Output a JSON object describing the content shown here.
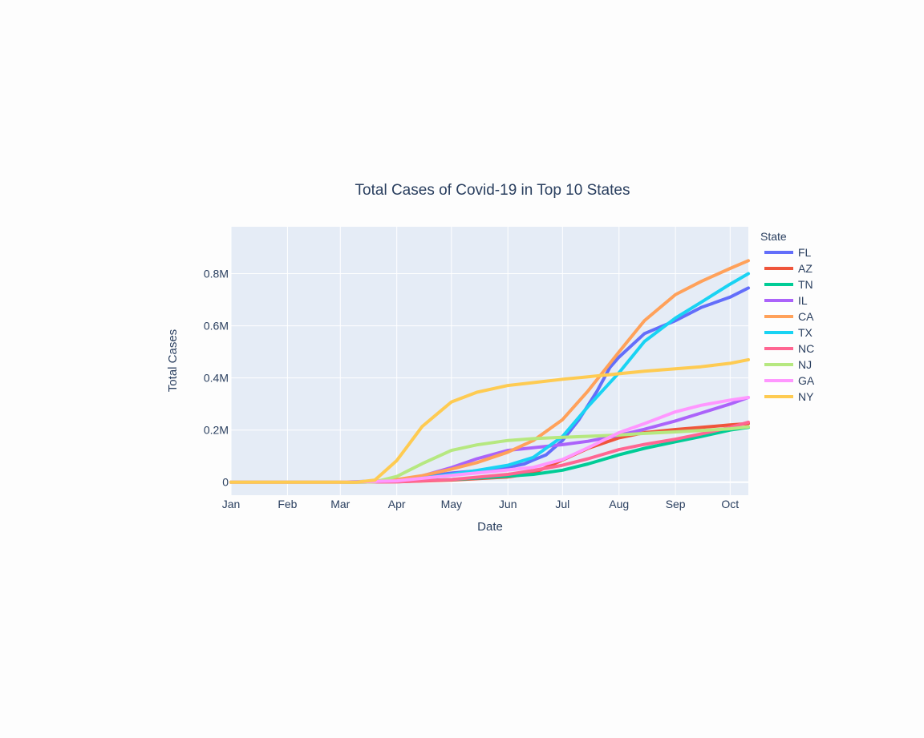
{
  "chart_data": {
    "type": "line",
    "title": "Total Cases of Covid-19 in Top 10 States",
    "xlabel": "Date",
    "ylabel": "Total Cases",
    "x_ticks": [
      "Jan",
      "Feb",
      "Mar",
      "Apr",
      "May",
      "Jun",
      "Jul",
      "Aug",
      "Sep",
      "Oct"
    ],
    "y_ticks": [
      {
        "value": 0,
        "label": "0"
      },
      {
        "value": 200000,
        "label": "0.2M"
      },
      {
        "value": 400000,
        "label": "0.4M"
      },
      {
        "value": 600000,
        "label": "0.6M"
      },
      {
        "value": 800000,
        "label": "0.8M"
      }
    ],
    "x_range": [
      "2020-01-01",
      "2020-10-11"
    ],
    "y_range": [
      -50000,
      980000
    ],
    "grid": true,
    "plot_background": "#e5ecf6",
    "legend_title": "State",
    "legend_position": "right",
    "series": [
      {
        "name": "FL",
        "color": "#636efa",
        "points": [
          [
            "2020-01-01",
            0
          ],
          [
            "2020-02-20",
            0
          ],
          [
            "2020-03-01",
            0
          ],
          [
            "2020-04-01",
            7000
          ],
          [
            "2020-05-01",
            35000
          ],
          [
            "2020-05-20",
            47000
          ],
          [
            "2020-06-01",
            57000
          ],
          [
            "2020-06-10",
            70000
          ],
          [
            "2020-06-15",
            85000
          ],
          [
            "2020-06-22",
            105000
          ],
          [
            "2020-07-01",
            160000
          ],
          [
            "2020-07-10",
            240000
          ],
          [
            "2020-07-20",
            350000
          ],
          [
            "2020-07-27",
            440000
          ],
          [
            "2020-08-01",
            480000
          ],
          [
            "2020-08-15",
            570000
          ],
          [
            "2020-09-01",
            620000
          ],
          [
            "2020-09-15",
            670000
          ],
          [
            "2020-10-01",
            710000
          ],
          [
            "2020-10-11",
            745000
          ]
        ]
      },
      {
        "name": "AZ",
        "color": "#ef553b",
        "points": [
          [
            "2020-01-01",
            0
          ],
          [
            "2020-03-01",
            0
          ],
          [
            "2020-04-01",
            1500
          ],
          [
            "2020-05-01",
            8000
          ],
          [
            "2020-06-01",
            20000
          ],
          [
            "2020-06-15",
            35000
          ],
          [
            "2020-07-01",
            85000
          ],
          [
            "2020-07-15",
            130000
          ],
          [
            "2020-08-01",
            170000
          ],
          [
            "2020-08-15",
            190000
          ],
          [
            "2020-09-01",
            202000
          ],
          [
            "2020-09-15",
            210000
          ],
          [
            "2020-10-01",
            220000
          ],
          [
            "2020-10-11",
            225000
          ]
        ]
      },
      {
        "name": "TN",
        "color": "#00cc96",
        "points": [
          [
            "2020-01-01",
            0
          ],
          [
            "2020-03-01",
            0
          ],
          [
            "2020-04-01",
            2500
          ],
          [
            "2020-05-01",
            10000
          ],
          [
            "2020-06-01",
            23000
          ],
          [
            "2020-06-15",
            30000
          ],
          [
            "2020-07-01",
            46000
          ],
          [
            "2020-07-15",
            70000
          ],
          [
            "2020-08-01",
            105000
          ],
          [
            "2020-08-15",
            130000
          ],
          [
            "2020-09-01",
            155000
          ],
          [
            "2020-09-15",
            175000
          ],
          [
            "2020-10-01",
            200000
          ],
          [
            "2020-10-11",
            210000
          ]
        ]
      },
      {
        "name": "IL",
        "color": "#ab63fa",
        "points": [
          [
            "2020-01-01",
            0
          ],
          [
            "2020-03-01",
            0
          ],
          [
            "2020-03-15",
            1000
          ],
          [
            "2020-04-01",
            7000
          ],
          [
            "2020-04-15",
            24000
          ],
          [
            "2020-05-01",
            56000
          ],
          [
            "2020-05-15",
            90000
          ],
          [
            "2020-06-01",
            122000
          ],
          [
            "2020-06-15",
            132000
          ],
          [
            "2020-07-01",
            144000
          ],
          [
            "2020-07-15",
            157000
          ],
          [
            "2020-08-01",
            180000
          ],
          [
            "2020-08-15",
            203000
          ],
          [
            "2020-09-01",
            235000
          ],
          [
            "2020-09-15",
            265000
          ],
          [
            "2020-10-01",
            300000
          ],
          [
            "2020-10-11",
            325000
          ]
        ]
      },
      {
        "name": "CA",
        "color": "#ffa15a",
        "points": [
          [
            "2020-01-01",
            0
          ],
          [
            "2020-03-01",
            0
          ],
          [
            "2020-03-15",
            400
          ],
          [
            "2020-04-01",
            10000
          ],
          [
            "2020-04-15",
            25000
          ],
          [
            "2020-05-01",
            50000
          ],
          [
            "2020-05-15",
            75000
          ],
          [
            "2020-06-01",
            115000
          ],
          [
            "2020-06-15",
            160000
          ],
          [
            "2020-07-01",
            240000
          ],
          [
            "2020-07-15",
            350000
          ],
          [
            "2020-08-01",
            500000
          ],
          [
            "2020-08-15",
            620000
          ],
          [
            "2020-09-01",
            720000
          ],
          [
            "2020-09-15",
            770000
          ],
          [
            "2020-10-01",
            820000
          ],
          [
            "2020-10-11",
            850000
          ]
        ]
      },
      {
        "name": "TX",
        "color": "#19d3f3",
        "points": [
          [
            "2020-01-01",
            0
          ],
          [
            "2020-03-01",
            0
          ],
          [
            "2020-04-01",
            4000
          ],
          [
            "2020-04-15",
            15000
          ],
          [
            "2020-05-01",
            30000
          ],
          [
            "2020-05-15",
            45000
          ],
          [
            "2020-06-01",
            65000
          ],
          [
            "2020-06-15",
            95000
          ],
          [
            "2020-07-01",
            175000
          ],
          [
            "2020-07-15",
            290000
          ],
          [
            "2020-08-01",
            420000
          ],
          [
            "2020-08-15",
            540000
          ],
          [
            "2020-09-01",
            630000
          ],
          [
            "2020-09-15",
            690000
          ],
          [
            "2020-10-01",
            760000
          ],
          [
            "2020-10-11",
            800000
          ]
        ]
      },
      {
        "name": "NC",
        "color": "#ff6692",
        "points": [
          [
            "2020-01-01",
            0
          ],
          [
            "2020-03-01",
            0
          ],
          [
            "2020-04-01",
            1500
          ],
          [
            "2020-05-01",
            10000
          ],
          [
            "2020-06-01",
            30000
          ],
          [
            "2020-06-15",
            45000
          ],
          [
            "2020-07-01",
            65000
          ],
          [
            "2020-07-15",
            90000
          ],
          [
            "2020-08-01",
            125000
          ],
          [
            "2020-08-15",
            145000
          ],
          [
            "2020-09-01",
            165000
          ],
          [
            "2020-09-15",
            185000
          ],
          [
            "2020-10-01",
            210000
          ],
          [
            "2020-10-11",
            230000
          ]
        ]
      },
      {
        "name": "NJ",
        "color": "#b6e880",
        "points": [
          [
            "2020-01-01",
            0
          ],
          [
            "2020-03-01",
            0
          ],
          [
            "2020-03-10",
            30
          ],
          [
            "2020-03-20",
            1300
          ],
          [
            "2020-04-01",
            22000
          ],
          [
            "2020-04-15",
            71000
          ],
          [
            "2020-05-01",
            122000
          ],
          [
            "2020-05-15",
            143000
          ],
          [
            "2020-06-01",
            160000
          ],
          [
            "2020-06-15",
            167000
          ],
          [
            "2020-07-01",
            172000
          ],
          [
            "2020-07-15",
            176000
          ],
          [
            "2020-08-01",
            181000
          ],
          [
            "2020-08-15",
            187000
          ],
          [
            "2020-09-01",
            193000
          ],
          [
            "2020-09-15",
            198000
          ],
          [
            "2020-10-01",
            205000
          ],
          [
            "2020-10-11",
            212000
          ]
        ]
      },
      {
        "name": "GA",
        "color": "#ff97ff",
        "points": [
          [
            "2020-01-01",
            0
          ],
          [
            "2020-03-01",
            0
          ],
          [
            "2020-04-01",
            5000
          ],
          [
            "2020-05-01",
            26000
          ],
          [
            "2020-06-01",
            47000
          ],
          [
            "2020-06-15",
            57000
          ],
          [
            "2020-07-01",
            87000
          ],
          [
            "2020-07-15",
            132000
          ],
          [
            "2020-08-01",
            190000
          ],
          [
            "2020-08-15",
            225000
          ],
          [
            "2020-09-01",
            270000
          ],
          [
            "2020-09-15",
            295000
          ],
          [
            "2020-10-01",
            315000
          ],
          [
            "2020-10-11",
            325000
          ]
        ]
      },
      {
        "name": "NY",
        "color": "#fecb52",
        "points": [
          [
            "2020-01-01",
            0
          ],
          [
            "2020-03-01",
            0
          ],
          [
            "2020-03-10",
            150
          ],
          [
            "2020-03-20",
            8000
          ],
          [
            "2020-04-01",
            83000
          ],
          [
            "2020-04-15",
            214000
          ],
          [
            "2020-05-01",
            308000
          ],
          [
            "2020-05-15",
            345000
          ],
          [
            "2020-06-01",
            371000
          ],
          [
            "2020-06-15",
            382000
          ],
          [
            "2020-07-01",
            395000
          ],
          [
            "2020-07-15",
            404000
          ],
          [
            "2020-08-01",
            416000
          ],
          [
            "2020-08-15",
            426000
          ],
          [
            "2020-09-01",
            435000
          ],
          [
            "2020-09-15",
            443000
          ],
          [
            "2020-10-01",
            456000
          ],
          [
            "2020-10-11",
            470000
          ]
        ]
      }
    ]
  }
}
